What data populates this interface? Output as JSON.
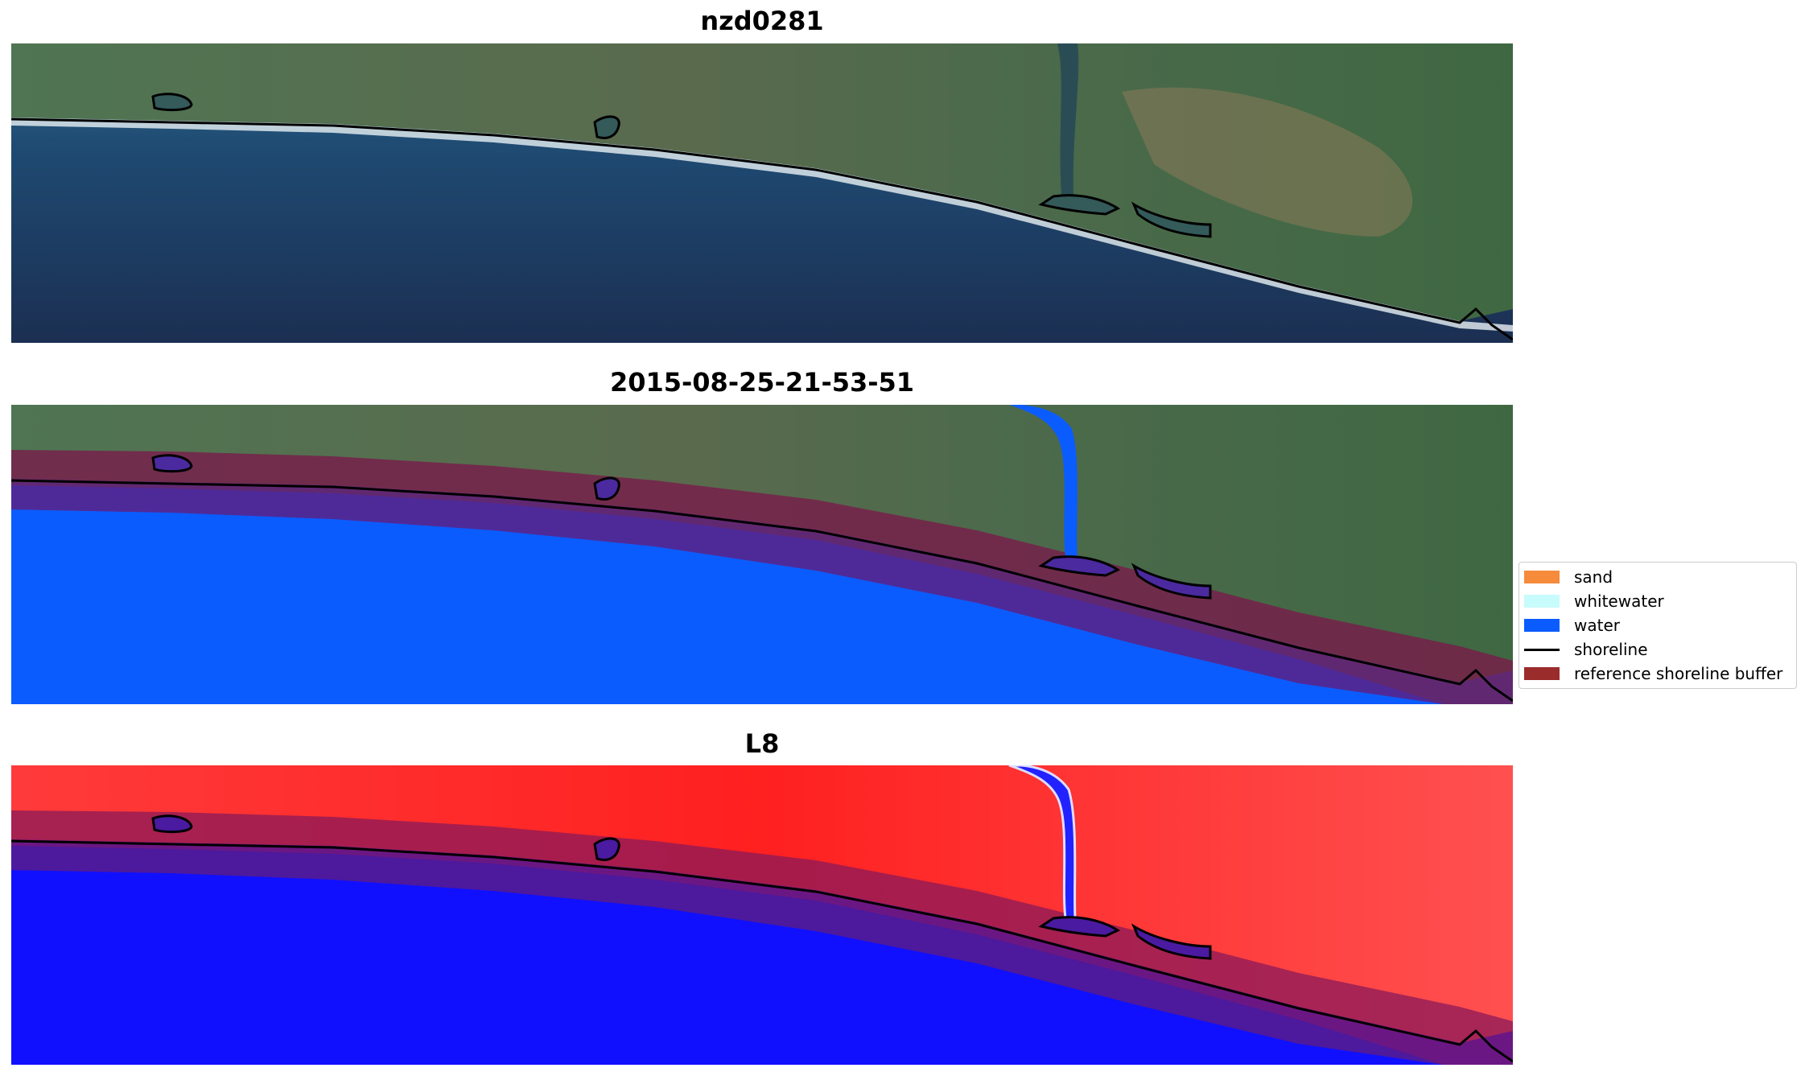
{
  "panels": [
    {
      "title": "nzd0281",
      "kind": "rgb"
    },
    {
      "title": "2015-08-25-21-53-51",
      "kind": "classified"
    },
    {
      "title": "L8",
      "kind": "index"
    }
  ],
  "legend": {
    "items": [
      {
        "label": "sand",
        "type": "patch",
        "color": "#f68b3c"
      },
      {
        "label": "whitewater",
        "type": "patch",
        "color": "#c8fbfb"
      },
      {
        "label": "water",
        "type": "patch",
        "color": "#0b5cff"
      },
      {
        "label": "shoreline",
        "type": "line",
        "color": "#000000"
      },
      {
        "label": "reference shoreline buffer",
        "type": "patch",
        "color": "#9b2c2c"
      }
    ]
  },
  "colors": {
    "land": "#4b6a4a",
    "ocean_deep": "#1e3558",
    "ocean_near": "#2e6b8c",
    "water_class": "#0b5cff",
    "buffer": "#7a1a4a",
    "index_land": "#ff2a2a",
    "index_water": "#1010ff"
  }
}
